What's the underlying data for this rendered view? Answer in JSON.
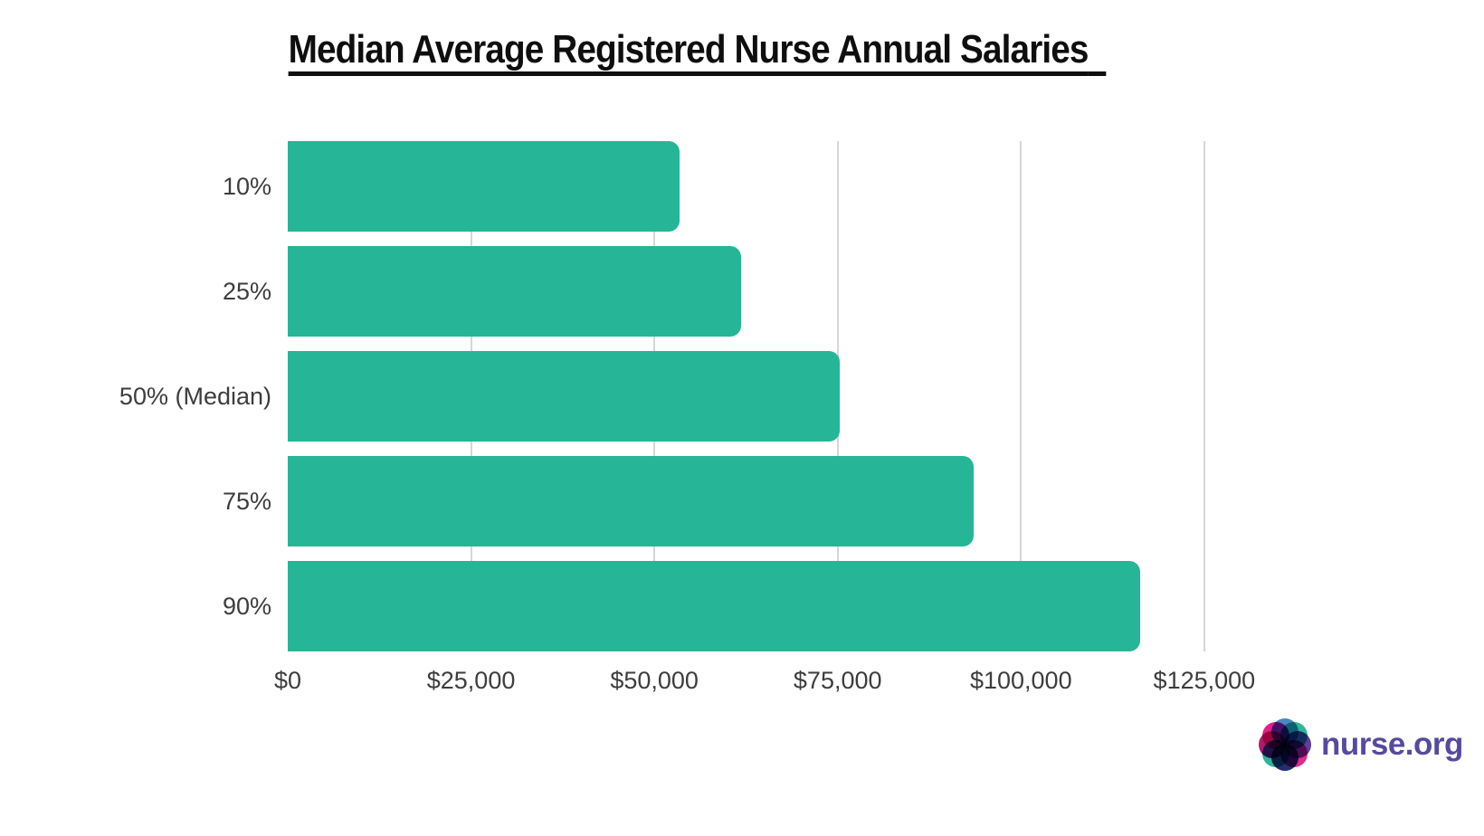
{
  "chart_data": {
    "type": "bar",
    "orientation": "horizontal",
    "title": "Median Average Registered Nurse Annual Salaries",
    "categories": [
      "10%",
      "25%",
      "50% (Median)",
      "75%",
      "90%"
    ],
    "values": [
      53400,
      61800,
      75300,
      93600,
      116200
    ],
    "value_unit": "USD per year",
    "xlabel": "",
    "ylabel": "",
    "xlim": [
      0,
      136000
    ],
    "x_ticks": [
      0,
      25000,
      50000,
      75000,
      100000,
      125000
    ],
    "x_tick_labels": [
      "$0",
      "$25,000",
      "$50,000",
      "$75,000",
      "$100,000",
      "$125,000"
    ],
    "grid": "vertical light gray lines at each x tick, behind bars",
    "legend": "none",
    "bar_color": "#26b596",
    "gridline_color": "#d6d6d6",
    "axis_text_color": "#3d3d3d",
    "title_color": "#0e0e0e"
  },
  "footer": {
    "brand": "nurse.org",
    "brand_color": "#564a9e",
    "logo_icon": "flower-icon",
    "logo_petal_colors": [
      "#4c87c0",
      "#32b39a",
      "#5d3f96",
      "#e12a8c",
      "#232e6b",
      "#2fb29b",
      "#ae1a6e",
      "#e0218a"
    ]
  }
}
